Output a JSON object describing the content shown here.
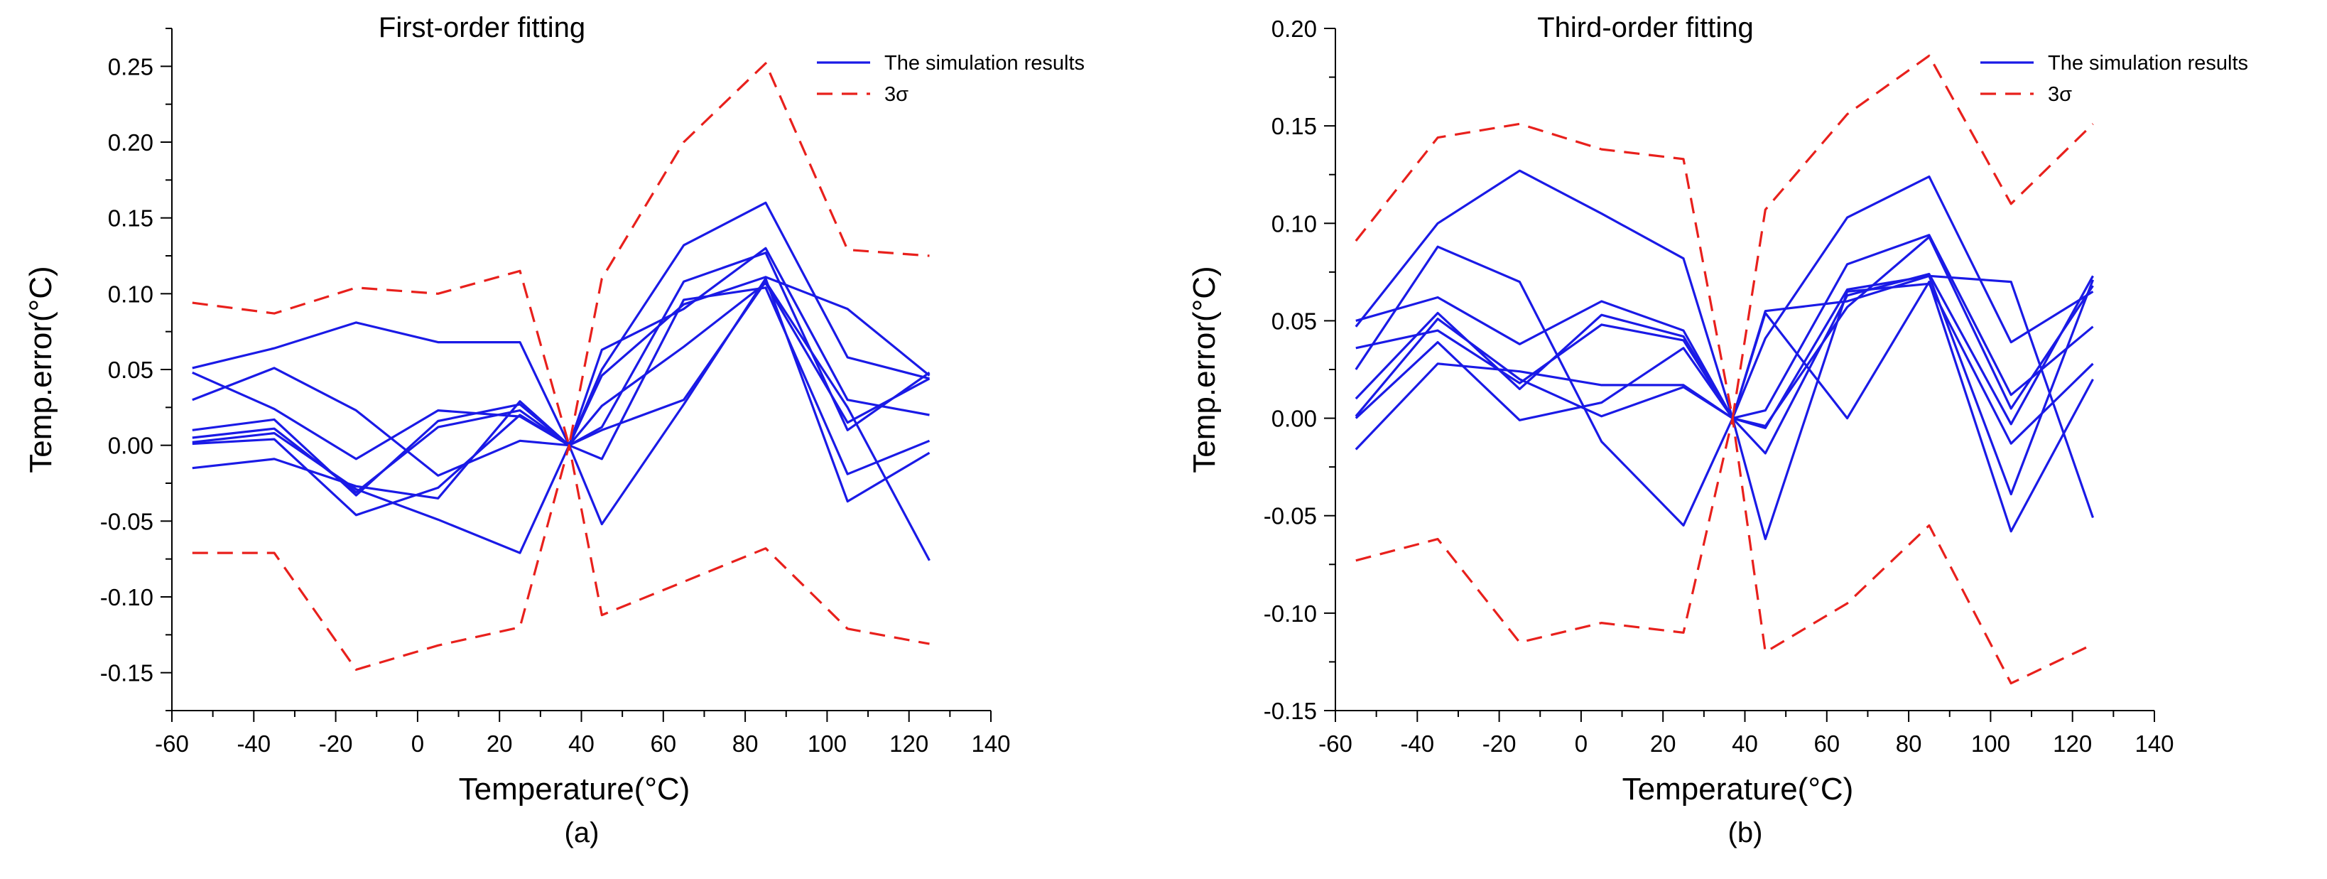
{
  "chart_data": [
    {
      "type": "line",
      "panel_label": "(a)",
      "title": "First-order fitting",
      "xlabel": "Temperature(°C)",
      "ylabel": "Temp.error(°C)",
      "xlim": [
        -60,
        140
      ],
      "ylim": [
        -0.175,
        0.275
      ],
      "xticks": [
        -60,
        -40,
        -20,
        0,
        20,
        40,
        60,
        80,
        100,
        120,
        140
      ],
      "yticks": [
        -0.15,
        -0.1,
        -0.05,
        0.0,
        0.05,
        0.1,
        0.15,
        0.2,
        0.25
      ],
      "ytick_labels": [
        "-0.15",
        "-0.10",
        "-0.05",
        "0.00",
        "0.05",
        "0.10",
        "0.15",
        "0.20",
        "0.25"
      ],
      "legend": {
        "position": "top-right",
        "entries": [
          "The simulation results",
          "3σ"
        ]
      },
      "x": [
        -55,
        -35,
        -15,
        5,
        25,
        37,
        45,
        65,
        85,
        105,
        125
      ],
      "series": [
        {
          "name": "The simulation results",
          "values": [
            0.051,
            0.064,
            0.081,
            0.068,
            0.068,
            0.0,
            0.046,
            0.093,
            0.111,
            0.09,
            0.046
          ]
        },
        {
          "name": "The simulation results",
          "values": [
            0.03,
            0.051,
            0.023,
            -0.02,
            0.003,
            0.0,
            0.05,
            0.132,
            0.16,
            0.058,
            0.044
          ]
        },
        {
          "name": "The simulation results",
          "values": [
            0.048,
            0.024,
            -0.009,
            0.023,
            0.019,
            0.0,
            0.063,
            0.09,
            0.13,
            0.03,
            0.02
          ]
        },
        {
          "name": "The simulation results",
          "values": [
            0.01,
            0.017,
            -0.033,
            0.016,
            0.027,
            0.0,
            0.012,
            0.108,
            0.127,
            0.01,
            0.048
          ]
        },
        {
          "name": "The simulation results",
          "values": [
            0.002,
            0.008,
            -0.029,
            -0.049,
            -0.071,
            0.0,
            0.026,
            0.065,
            0.107,
            0.015,
            0.044
          ]
        },
        {
          "name": "The simulation results",
          "values": [
            0.001,
            0.004,
            -0.046,
            -0.028,
            0.02,
            0.0,
            -0.009,
            0.096,
            0.104,
            -0.019,
            0.003
          ]
        },
        {
          "name": "The simulation results",
          "values": [
            -0.015,
            -0.009,
            -0.027,
            -0.035,
            0.029,
            0.0,
            -0.052,
            0.027,
            0.11,
            -0.037,
            -0.005
          ]
        },
        {
          "name": "The simulation results",
          "values": [
            0.005,
            0.011,
            -0.031,
            0.012,
            0.023,
            0.0,
            0.01,
            0.03,
            0.108,
            0.025,
            -0.076
          ]
        },
        {
          "name": "3σ",
          "dashed": true,
          "values": [
            0.094,
            0.087,
            0.104,
            0.1,
            0.115,
            0.0,
            0.11,
            0.2,
            0.252,
            0.129,
            0.125
          ]
        },
        {
          "name": "3σ",
          "dashed": true,
          "values": [
            -0.071,
            -0.071,
            -0.148,
            -0.132,
            -0.12,
            0.0,
            -0.112,
            -0.09,
            -0.068,
            -0.121,
            -0.131
          ]
        }
      ]
    },
    {
      "type": "line",
      "panel_label": "(b)",
      "title": "Third-order fitting",
      "xlabel": "Temperature(°C)",
      "ylabel": "Temp.error(°C)",
      "xlim": [
        -60,
        140
      ],
      "ylim": [
        -0.15,
        0.2
      ],
      "xticks": [
        -60,
        -40,
        -20,
        0,
        20,
        40,
        60,
        80,
        100,
        120,
        140
      ],
      "yticks": [
        -0.15,
        -0.1,
        -0.05,
        0.0,
        0.05,
        0.1,
        0.15,
        0.2
      ],
      "ytick_labels": [
        "-0.15",
        "-0.10",
        "-0.05",
        "0.00",
        "0.05",
        "0.10",
        "0.15",
        "0.20"
      ],
      "legend": {
        "position": "top-right",
        "entries": [
          "The simulation results",
          "3σ"
        ]
      },
      "x": [
        -55,
        -35,
        -15,
        5,
        25,
        37,
        45,
        65,
        85,
        105,
        125
      ],
      "series": [
        {
          "name": "The simulation results",
          "values": [
            0.047,
            0.1,
            0.127,
            0.105,
            0.082,
            0.0,
            0.055,
            0.06,
            0.073,
            0.07,
            -0.051
          ]
        },
        {
          "name": "The simulation results",
          "values": [
            0.025,
            0.088,
            0.07,
            -0.012,
            -0.055,
            0.0,
            0.041,
            0.103,
            0.124,
            0.039,
            0.065
          ]
        },
        {
          "name": "The simulation results",
          "values": [
            0.05,
            0.062,
            0.038,
            0.06,
            0.045,
            0.0,
            0.004,
            0.079,
            0.094,
            0.012,
            0.047
          ]
        },
        {
          "name": "The simulation results",
          "values": [
            0.01,
            0.054,
            0.015,
            0.053,
            0.042,
            0.0,
            -0.018,
            0.063,
            0.074,
            -0.003,
            0.073
          ]
        },
        {
          "name": "The simulation results",
          "values": [
            0.036,
            0.045,
            0.018,
            0.048,
            0.04,
            0.0,
            -0.004,
            0.057,
            0.093,
            0.005,
            0.068
          ]
        },
        {
          "name": "The simulation results",
          "values": [
            0.0,
            0.039,
            -0.001,
            0.008,
            0.036,
            0.0,
            -0.005,
            0.066,
            0.073,
            -0.039,
            0.071
          ]
        },
        {
          "name": "The simulation results",
          "values": [
            -0.016,
            0.028,
            0.024,
            0.017,
            0.017,
            0.0,
            -0.062,
            0.065,
            0.069,
            -0.013,
            0.028
          ]
        },
        {
          "name": "The simulation results",
          "values": [
            0.001,
            0.051,
            0.02,
            0.001,
            0.016,
            0.0,
            0.054,
            0.0,
            0.07,
            -0.058,
            0.02
          ]
        },
        {
          "name": "3σ",
          "dashed": true,
          "values": [
            0.091,
            0.144,
            0.151,
            0.138,
            0.133,
            0.0,
            0.107,
            0.156,
            0.186,
            0.11,
            0.151
          ]
        },
        {
          "name": "3σ",
          "dashed": true,
          "values": [
            -0.073,
            -0.062,
            -0.115,
            -0.105,
            -0.11,
            0.0,
            -0.12,
            -0.095,
            -0.055,
            -0.136,
            -0.116
          ]
        }
      ]
    }
  ],
  "colors": {
    "simulation": "#1a1ae6",
    "sigma": "#e8201c",
    "axis": "#000000"
  }
}
